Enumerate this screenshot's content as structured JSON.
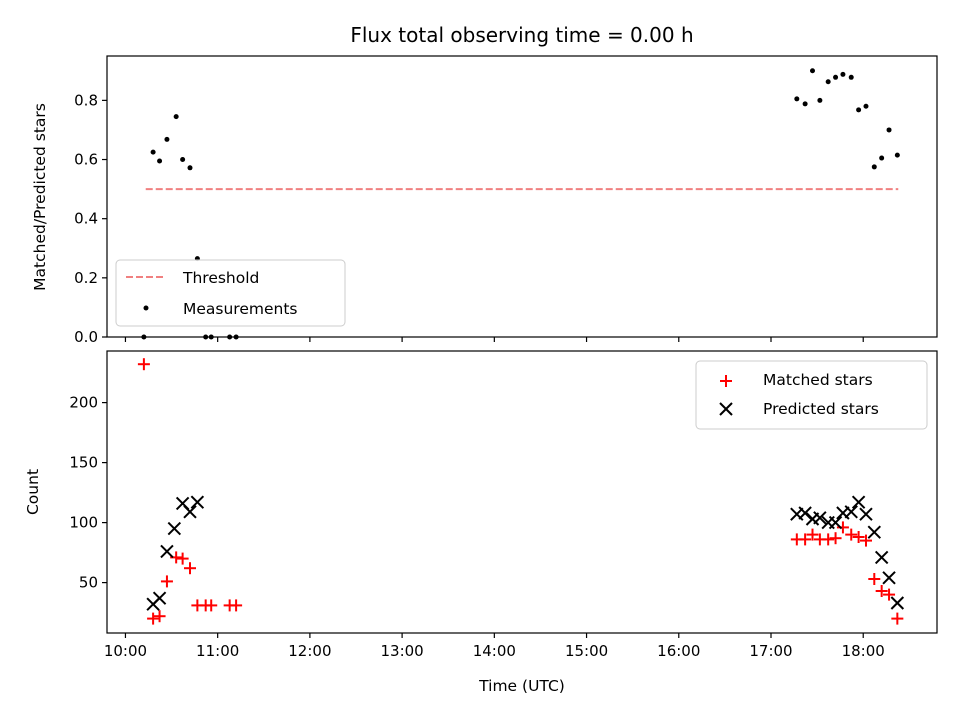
{
  "chart_data": [
    {
      "type": "scatter",
      "title": "Flux total observing time = 0.00 h",
      "xlabel": "",
      "ylabel": "Matched/Predicted stars",
      "xlim": [
        9.8,
        18.8
      ],
      "ylim": [
        0,
        0.95
      ],
      "yticks": [
        0,
        0.2,
        0.4,
        0.6,
        0.8
      ],
      "ytick_labels": [
        "0.0",
        "0.2",
        "0.4",
        "0.6",
        "0.8"
      ],
      "xticks": [
        10,
        11,
        12,
        13,
        14,
        15,
        16,
        17,
        18
      ],
      "legend_placement": "lower-left",
      "threshold": {
        "name": "Threshold",
        "value": 0.5,
        "x_range": [
          10.22,
          18.38
        ],
        "color": "#f08080"
      },
      "series": [
        {
          "name": "Measurements",
          "color": "#000000",
          "marker": "dot",
          "x": [
            10.2,
            10.3,
            10.37,
            10.45,
            10.55,
            10.62,
            10.7,
            10.78,
            10.87,
            10.93,
            11.13,
            11.2,
            17.28,
            17.37,
            17.45,
            17.53,
            17.62,
            17.7,
            17.78,
            17.87,
            17.95,
            18.03,
            18.12,
            18.2,
            18.28,
            18.37
          ],
          "y": [
            0.0,
            0.625,
            0.595,
            0.668,
            0.745,
            0.6,
            0.572,
            0.265,
            0.0,
            0.0,
            0.0,
            0.0,
            0.805,
            0.788,
            0.9,
            0.8,
            0.863,
            0.878,
            0.888,
            0.878,
            0.768,
            0.78,
            0.575,
            0.605,
            0.7,
            0.615
          ]
        }
      ]
    },
    {
      "type": "scatter",
      "title": "",
      "xlabel": "Time (UTC)",
      "ylabel": "Count",
      "xlim": [
        9.8,
        18.8
      ],
      "ylim": [
        8,
        243
      ],
      "yticks": [
        50,
        100,
        150,
        200
      ],
      "xticks": [
        10,
        11,
        12,
        13,
        14,
        15,
        16,
        17,
        18
      ],
      "xtick_labels": [
        "10:00",
        "11:00",
        "12:00",
        "13:00",
        "14:00",
        "15:00",
        "16:00",
        "17:00",
        "18:00"
      ],
      "legend_placement": "top-right",
      "series": [
        {
          "name": "Matched stars",
          "color": "#ff0000",
          "marker": "plus",
          "x": [
            10.2,
            10.3,
            10.37,
            10.45,
            10.55,
            10.62,
            10.7,
            10.78,
            10.87,
            10.93,
            11.13,
            11.2,
            17.28,
            17.37,
            17.45,
            17.53,
            17.62,
            17.7,
            17.78,
            17.87,
            17.95,
            18.03,
            18.12,
            18.2,
            18.28,
            18.37
          ],
          "y": [
            232,
            20,
            22,
            51,
            71,
            70,
            62,
            31,
            31,
            31,
            31,
            31,
            86,
            86,
            90,
            86,
            86,
            87,
            96,
            90,
            88,
            85,
            53,
            43,
            40,
            20
          ]
        },
        {
          "name": "Predicted stars",
          "color": "#000000",
          "marker": "x",
          "x": [
            10.3,
            10.37,
            10.45,
            10.53,
            10.62,
            10.7,
            10.78,
            17.28,
            17.37,
            17.45,
            17.53,
            17.62,
            17.7,
            17.78,
            17.87,
            17.95,
            18.03,
            18.12,
            18.2,
            18.28,
            18.37
          ],
          "y": [
            32,
            37,
            76,
            95,
            116,
            109,
            117,
            107,
            108,
            103,
            104,
            100,
            100,
            108,
            109,
            117,
            107,
            92,
            71,
            54,
            33
          ]
        }
      ]
    }
  ]
}
